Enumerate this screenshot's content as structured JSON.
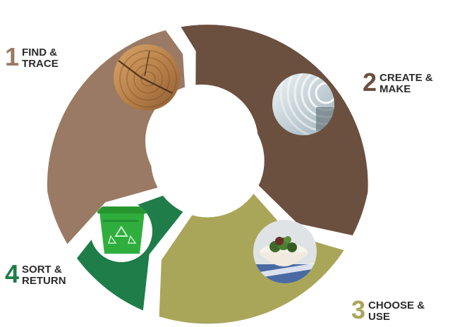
{
  "steps": [
    {
      "number": "1",
      "line1": "FIND &",
      "line2": "TRACE",
      "color": "#9a7a64",
      "icon": "wood-log-icon"
    },
    {
      "number": "2",
      "line1": "CREATE &",
      "line2": "MAKE",
      "color": "#6b5040",
      "icon": "paper-roll-icon"
    },
    {
      "number": "3",
      "line1": "CHOOSE &",
      "line2": "USE",
      "color": "#a9a659",
      "icon": "food-bowl-icon"
    },
    {
      "number": "4",
      "line1": "SORT &",
      "line2": "RETURN",
      "color": "#1e7d48",
      "icon": "recycling-bin-icon"
    }
  ]
}
